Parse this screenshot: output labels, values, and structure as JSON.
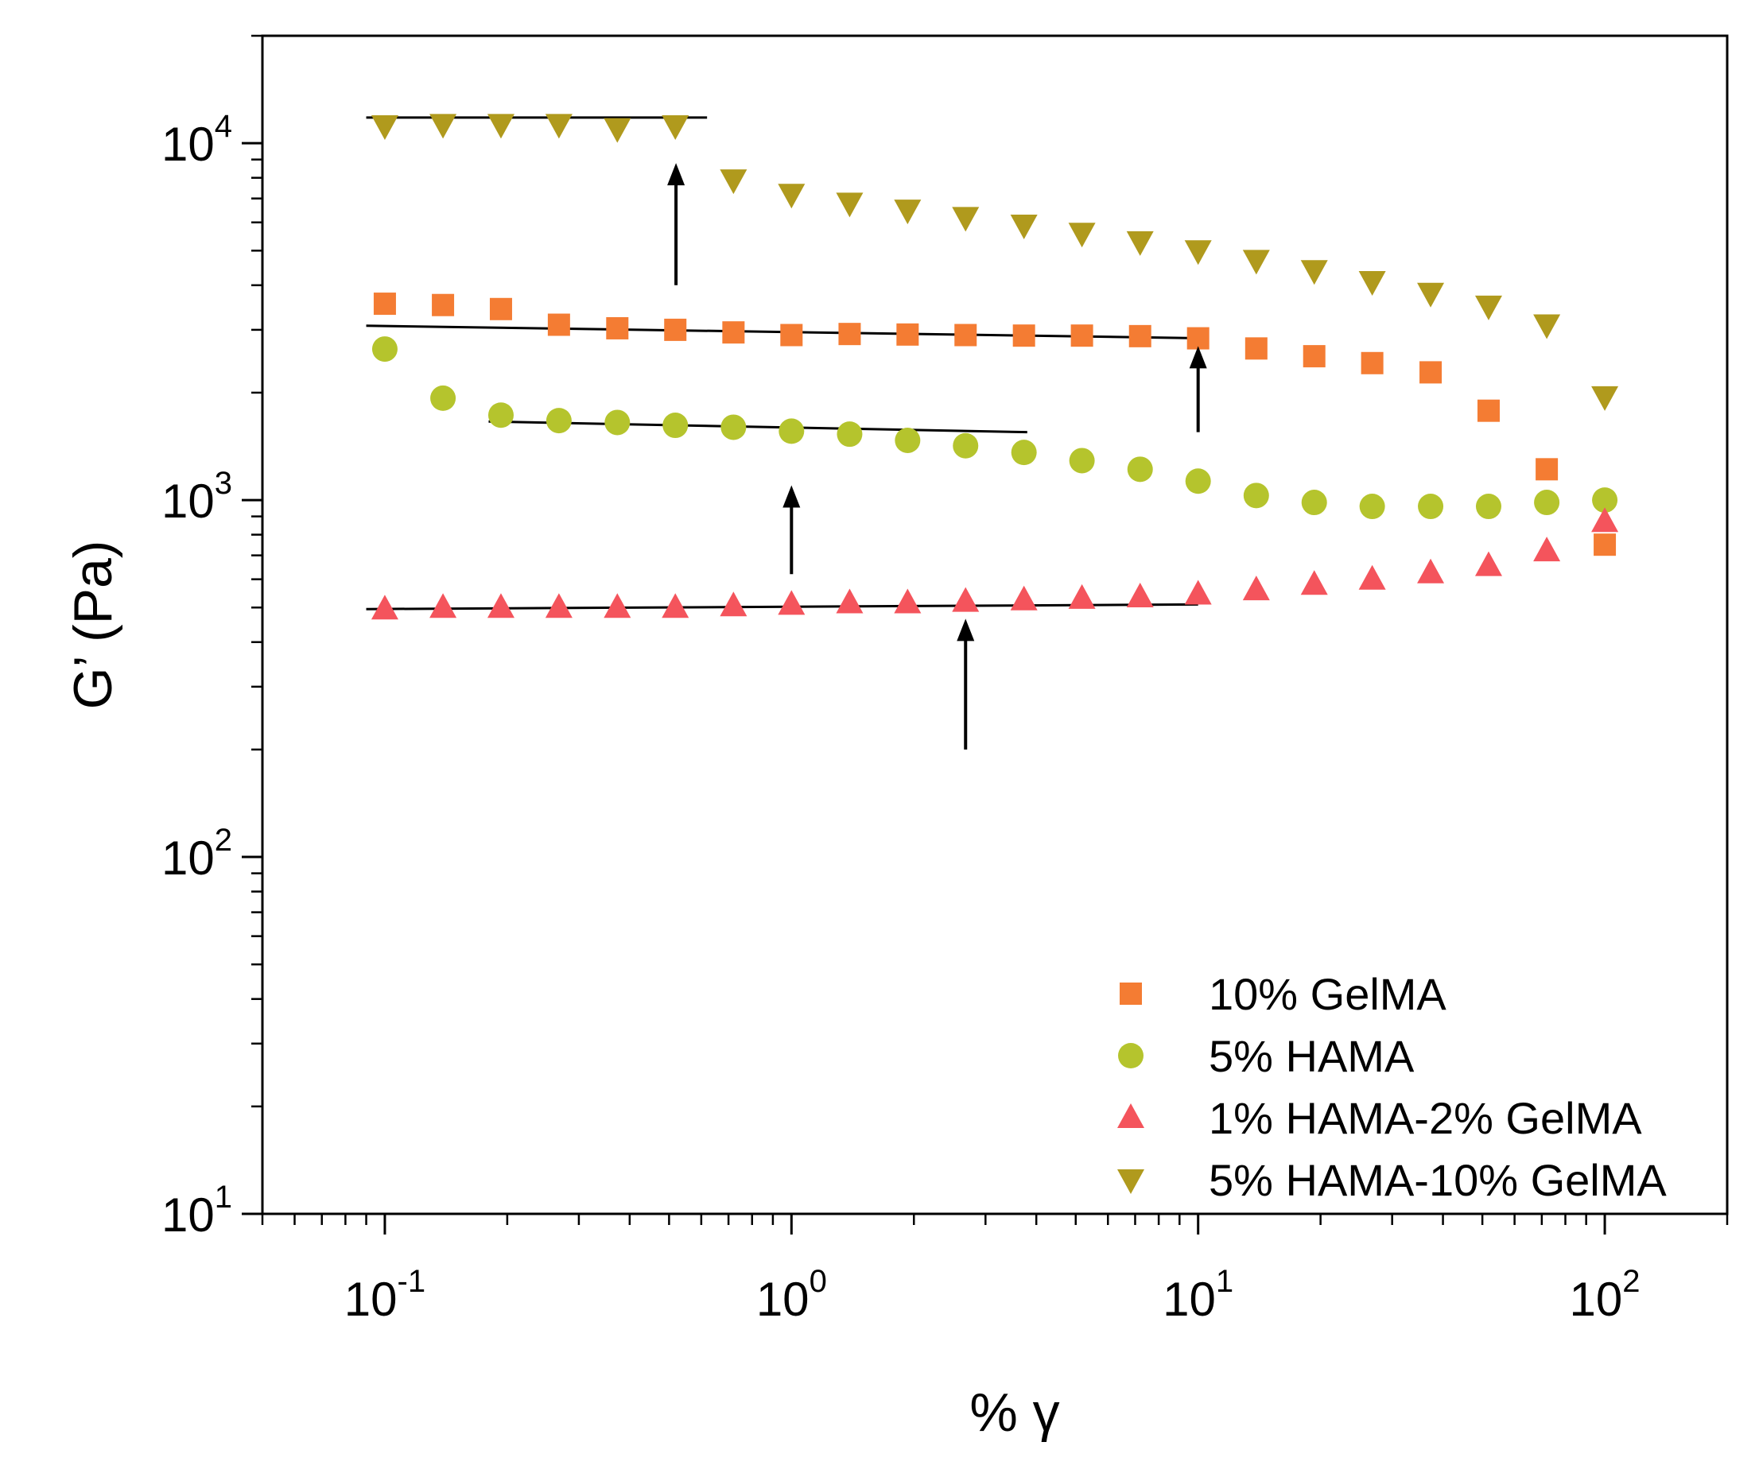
{
  "chart_data": {
    "type": "scatter",
    "title": "",
    "xlabel": "% γ",
    "ylabel": "G’ (Pa)",
    "x_scale": "log",
    "y_scale": "log",
    "xlim": [
      0.05,
      200
    ],
    "ylim": [
      10,
      20000
    ],
    "grid": false,
    "legend_position": "bottom-right",
    "x_ticks": [
      {
        "value": 0.1,
        "base": "10",
        "exp": "-1"
      },
      {
        "value": 1,
        "base": "10",
        "exp": "0"
      },
      {
        "value": 10,
        "base": "10",
        "exp": "1"
      },
      {
        "value": 100,
        "base": "10",
        "exp": "2"
      }
    ],
    "y_ticks": [
      {
        "value": 10,
        "base": "10",
        "exp": "1"
      },
      {
        "value": 100,
        "base": "10",
        "exp": "2"
      },
      {
        "value": 1000,
        "base": "10",
        "exp": "3"
      },
      {
        "value": 10000,
        "base": "10",
        "exp": "4"
      }
    ],
    "x": [
      0.1,
      0.139,
      0.193,
      0.268,
      0.373,
      0.518,
      0.72,
      1.0,
      1.39,
      1.93,
      2.68,
      3.73,
      5.18,
      7.2,
      10.0,
      13.9,
      19.3,
      26.8,
      37.3,
      51.8,
      72.0,
      100.0
    ],
    "series": [
      {
        "name": "10% GelMA",
        "color": "#f47c33",
        "marker": "square",
        "values": [
          3550,
          3520,
          3430,
          3100,
          3030,
          3000,
          2950,
          2900,
          2920,
          2910,
          2900,
          2890,
          2890,
          2880,
          2840,
          2660,
          2530,
          2420,
          2280,
          1780,
          1220,
          750
        ]
      },
      {
        "name": "5% HAMA",
        "color": "#b5c42d",
        "marker": "circle",
        "values": [
          2650,
          1930,
          1730,
          1670,
          1650,
          1620,
          1600,
          1560,
          1530,
          1470,
          1420,
          1360,
          1290,
          1220,
          1130,
          1030,
          985,
          960,
          960,
          960,
          985,
          1000
        ]
      },
      {
        "name": "1% HAMA-2% GelMA",
        "color": "#f4545c",
        "marker": "triangle-up",
        "values": [
          495,
          500,
          500,
          500,
          500,
          500,
          505,
          510,
          515,
          515,
          520,
          525,
          530,
          535,
          545,
          560,
          580,
          600,
          625,
          655,
          720,
          870
        ]
      },
      {
        "name": "5% HAMA-10% GelMA",
        "color": "#b09a1d",
        "marker": "triangle-down",
        "values": [
          11200,
          11300,
          11300,
          11300,
          11000,
          11200,
          7900,
          7200,
          6800,
          6500,
          6200,
          5900,
          5600,
          5300,
          5000,
          4700,
          4400,
          4100,
          3800,
          3500,
          3100,
          1950
        ]
      }
    ],
    "fit_lines": [
      {
        "series": "5% HAMA-10% GelMA",
        "x": [
          0.09,
          0.62
        ],
        "y": [
          11800,
          11800
        ]
      },
      {
        "series": "10% GelMA",
        "x": [
          0.09,
          10.5
        ],
        "y": [
          3080,
          2840
        ]
      },
      {
        "series": "5% HAMA",
        "x": [
          0.18,
          3.8
        ],
        "y": [
          1660,
          1550
        ]
      },
      {
        "series": "1% HAMA-2% GelMA",
        "x": [
          0.09,
          10.0
        ],
        "y": [
          495,
          510
        ]
      }
    ],
    "arrows": [
      {
        "x": 0.52,
        "y_from": 4000,
        "y_to": 8800
      },
      {
        "x": 10.0,
        "y_from": 1550,
        "y_to": 2700
      },
      {
        "x": 1.0,
        "y_from": 620,
        "y_to": 1100
      },
      {
        "x": 2.68,
        "y_from": 200,
        "y_to": 465
      }
    ]
  }
}
